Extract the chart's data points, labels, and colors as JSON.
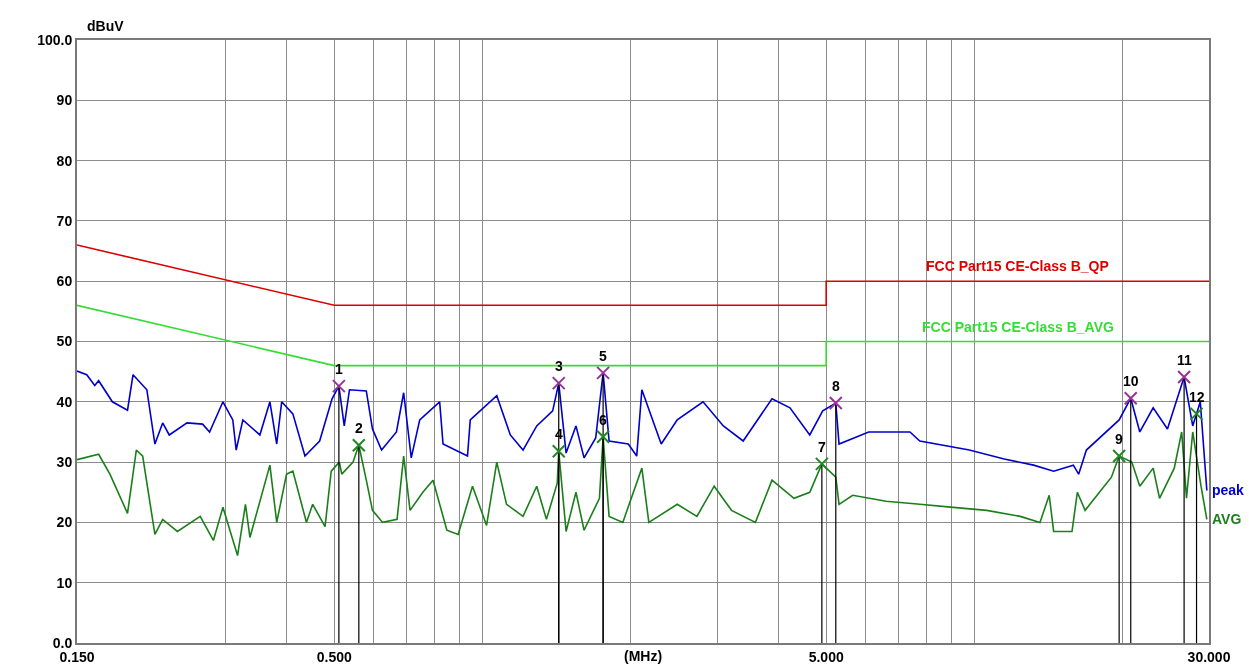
{
  "chart_data": {
    "type": "line",
    "xlabel": "(MHz)",
    "ylabel": "dBuV",
    "log": "x",
    "grid": true,
    "legend": false,
    "line_style": "solid",
    "marker": "none",
    "xlim": [
      0.15,
      30
    ],
    "ylim": [
      0,
      100
    ],
    "xticks": [
      {
        "value": 0.15,
        "label": "0.150"
      },
      {
        "value": 0.3,
        "label": null
      },
      {
        "value": 0.4,
        "label": null
      },
      {
        "value": 0.5,
        "label": "0.500"
      },
      {
        "value": 0.6,
        "label": null
      },
      {
        "value": 0.7,
        "label": null
      },
      {
        "value": 0.8,
        "label": null
      },
      {
        "value": 0.9,
        "label": null
      },
      {
        "value": 1,
        "label": null
      },
      {
        "value": 2,
        "label": null
      },
      {
        "value": 3,
        "label": null
      },
      {
        "value": 4,
        "label": null
      },
      {
        "value": 5,
        "label": "5.000"
      },
      {
        "value": 6,
        "label": null
      },
      {
        "value": 7,
        "label": null
      },
      {
        "value": 8,
        "label": null
      },
      {
        "value": 9,
        "label": null
      },
      {
        "value": 10,
        "label": null
      },
      {
        "value": 20,
        "label": null
      },
      {
        "value": 30,
        "label": "30.000"
      }
    ],
    "yticks": [
      {
        "value": 0,
        "label": "0.0"
      },
      10,
      20,
      30,
      40,
      50,
      60,
      70,
      80,
      90,
      {
        "value": 100,
        "label": "100.0"
      }
    ],
    "series": [
      {
        "name": "FCC Part15 CE-Class B_QP",
        "color": "#dd0000",
        "x": [
          0.15,
          0.5,
          5,
          5,
          30
        ],
        "values": [
          66,
          56,
          56,
          60,
          60
        ]
      },
      {
        "name": "FCC Part15 CE-Class B_AVG",
        "color": "#33dd33",
        "x": [
          0.15,
          0.5,
          5,
          5,
          30
        ],
        "values": [
          56,
          46,
          46,
          50,
          50
        ]
      },
      {
        "name": "peak",
        "color": "#0000cc",
        "x": [
          0.15,
          0.157,
          0.163,
          0.166,
          0.177,
          0.19,
          0.195,
          0.208,
          0.216,
          0.224,
          0.231,
          0.251,
          0.27,
          0.279,
          0.297,
          0.311,
          0.316,
          0.326,
          0.353,
          0.37,
          0.382,
          0.391,
          0.412,
          0.436,
          0.467,
          0.495,
          0.511,
          0.524,
          0.537,
          0.581,
          0.598,
          0.624,
          0.669,
          0.692,
          0.717,
          0.746,
          0.819,
          0.832,
          0.933,
          0.945,
          1.07,
          1.14,
          1.21,
          1.29,
          1.39,
          1.43,
          1.48,
          1.55,
          1.61,
          1.7,
          1.76,
          1.81,
          1.98,
          2.06,
          2.11,
          2.31,
          2.49,
          2.81,
          3.09,
          3.39,
          3.88,
          4.22,
          4.63,
          4.92,
          5.23,
          5.31,
          6.1,
          7.4,
          7.75,
          9.77,
          11.5,
          13.2,
          14.5,
          15.9,
          16.3,
          16.9,
          19.7,
          20.8,
          21.7,
          23.1,
          24.7,
          26.7,
          27.8,
          28.8,
          29.7
        ],
        "values": [
          45.1,
          44.5,
          42.7,
          43.5,
          40,
          38.6,
          44.5,
          42,
          33,
          36.5,
          34.5,
          36.5,
          36.3,
          35,
          40,
          37,
          32,
          37,
          34.5,
          40,
          33,
          40,
          38,
          31,
          33.5,
          40.5,
          42.6,
          36,
          42,
          41.8,
          35.5,
          32,
          35,
          41.5,
          30.7,
          37,
          40,
          33,
          31,
          37,
          41,
          34.5,
          32,
          36,
          38.5,
          43.1,
          31.5,
          36,
          30.7,
          34,
          44.8,
          33.5,
          33,
          31,
          42,
          33,
          37,
          40,
          36,
          33.5,
          40.5,
          39,
          34.5,
          38.5,
          39.8,
          33,
          35,
          35,
          33.5,
          32,
          30.5,
          29.5,
          28.5,
          29.5,
          28,
          32,
          37,
          40.6,
          35,
          39,
          35.5,
          44.1,
          36,
          40,
          25.3
        ]
      },
      {
        "name": "AVG",
        "color": "#1a7f1a",
        "x": [
          0.15,
          0.166,
          0.175,
          0.19,
          0.198,
          0.204,
          0.216,
          0.224,
          0.24,
          0.267,
          0.284,
          0.297,
          0.318,
          0.33,
          0.337,
          0.37,
          0.382,
          0.4,
          0.412,
          0.439,
          0.452,
          0.479,
          0.493,
          0.512,
          0.518,
          0.546,
          0.561,
          0.581,
          0.598,
          0.627,
          0.671,
          0.692,
          0.713,
          0.757,
          0.794,
          0.847,
          0.893,
          0.955,
          1.02,
          1.07,
          1.12,
          1.21,
          1.29,
          1.35,
          1.42,
          1.43,
          1.48,
          1.55,
          1.61,
          1.73,
          1.76,
          1.81,
          1.93,
          2.11,
          2.18,
          2.49,
          2.73,
          2.96,
          3.21,
          3.59,
          3.88,
          4.3,
          4.63,
          4.9,
          5.23,
          5.31,
          5.66,
          6.62,
          7.75,
          9.06,
          10.6,
          12.4,
          13.6,
          14.2,
          14.5,
          15.8,
          16.2,
          16.8,
          19.0,
          19.7,
          20.9,
          21.7,
          23.1,
          23.8,
          25.5,
          26.4,
          27.0,
          27.8,
          28.9,
          29.7
        ],
        "values": [
          30.4,
          31.3,
          28,
          21.5,
          32,
          31,
          18,
          20.5,
          18.5,
          21,
          17,
          22.5,
          14.5,
          23,
          17.5,
          29.5,
          20,
          28,
          28.5,
          20,
          23,
          19.3,
          28.5,
          30,
          28,
          30,
          32.8,
          27,
          22,
          20,
          20.5,
          31,
          22,
          25,
          27,
          18.7,
          18,
          26,
          19.5,
          30,
          23,
          21,
          26,
          20.5,
          26.5,
          31.8,
          18.5,
          25,
          18.7,
          24,
          34.2,
          21,
          20,
          29,
          20,
          23,
          21,
          26,
          22,
          20,
          27,
          24,
          25,
          29.7,
          27.5,
          23,
          24.5,
          23.5,
          23,
          22.5,
          22,
          21,
          20,
          24.5,
          18.5,
          18.5,
          25,
          22,
          27.5,
          31,
          30,
          26,
          29,
          24,
          29,
          35,
          24,
          35,
          26,
          20.5
        ]
      },
      {
        "type": "lollipop",
        "color": "#993399",
        "marker": "cross",
        "x": [
          0.511,
          1.43,
          1.76,
          5.23,
          20.8,
          26.7
        ],
        "values": [
          42.6,
          43.1,
          44.8,
          39.8,
          40.6,
          44.1
        ]
      },
      {
        "type": "lollipop",
        "color": "#228822",
        "marker": "cross",
        "x": [
          0.561,
          1.43,
          1.76,
          4.9,
          19.7,
          28.3
        ],
        "values": [
          32.8,
          31.8,
          34.2,
          29.7,
          31.0,
          38
        ]
      }
    ],
    "annotations": [
      {
        "text": "1",
        "x": 0.511,
        "y": 42.6
      },
      {
        "text": "2",
        "x": 0.561,
        "y": 32.8
      },
      {
        "text": "3",
        "x": 1.43,
        "y": 43.1
      },
      {
        "text": "4",
        "x": 1.43,
        "y": 31.8
      },
      {
        "text": "5",
        "x": 1.76,
        "y": 44.8
      },
      {
        "text": "6",
        "x": 1.76,
        "y": 34.2
      },
      {
        "text": "7",
        "x": 4.9,
        "y": 29.7
      },
      {
        "text": "8",
        "x": 5.23,
        "y": 39.8
      },
      {
        "text": "9",
        "x": 19.7,
        "y": 31.0
      },
      {
        "text": "10",
        "x": 20.8,
        "y": 40.6
      },
      {
        "text": "11",
        "x": 26.7,
        "y": 44.1
      },
      {
        "text": "12",
        "x": 28.3,
        "y": 38
      }
    ]
  }
}
